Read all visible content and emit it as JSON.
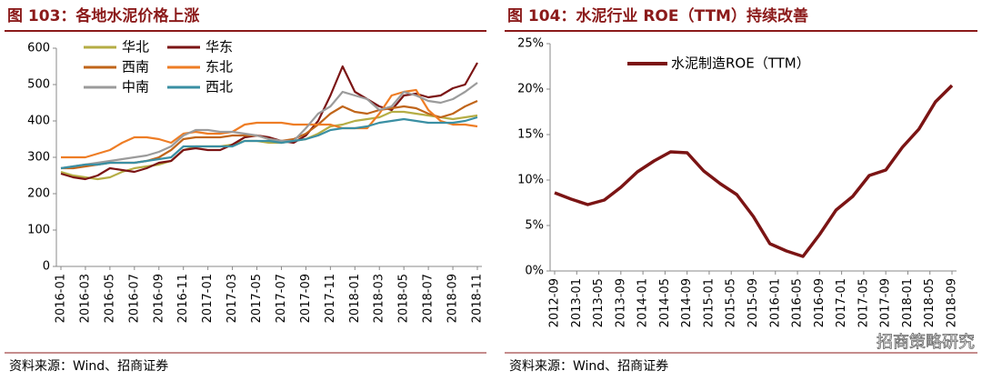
{
  "chart_data": [
    {
      "type": "line",
      "title": "图 103：各地水泥价格上涨",
      "source": "资料来源：Wind、招商证券",
      "categories": [
        "2016-01",
        null,
        "2016-03",
        null,
        "2016-05",
        null,
        "2016-07",
        null,
        "2016-09",
        null,
        "2016-11",
        null,
        "2017-01",
        null,
        "2017-03",
        null,
        "2017-05",
        null,
        "2017-07",
        null,
        "2017-09",
        null,
        "2017-11",
        null,
        "2018-01",
        null,
        "2018-03",
        null,
        "2018-05",
        null,
        "2018-07",
        null,
        "2018-09",
        null,
        "2018-11"
      ],
      "ylim": [
        0,
        600
      ],
      "yticks": [
        0,
        100,
        200,
        300,
        400,
        500,
        600
      ],
      "legend": "upper left",
      "series": [
        {
          "name": "华北",
          "color": "#b5ad45",
          "values": [
            260,
            250,
            245,
            240,
            245,
            260,
            270,
            275,
            280,
            290,
            320,
            330,
            330,
            330,
            335,
            345,
            345,
            340,
            340,
            345,
            350,
            365,
            385,
            390,
            400,
            405,
            410,
            425,
            425,
            420,
            415,
            410,
            405,
            410,
            415
          ]
        },
        {
          "name": "华东",
          "color": "#7b1414",
          "values": [
            255,
            245,
            240,
            250,
            270,
            265,
            260,
            270,
            285,
            290,
            320,
            325,
            320,
            320,
            335,
            355,
            360,
            355,
            345,
            340,
            360,
            400,
            470,
            550,
            480,
            460,
            440,
            430,
            470,
            475,
            465,
            470,
            490,
            500,
            560
          ]
        },
        {
          "name": "西南",
          "color": "#c0651a",
          "values": [
            270,
            270,
            275,
            280,
            285,
            285,
            285,
            290,
            300,
            320,
            350,
            355,
            355,
            355,
            360,
            360,
            360,
            350,
            345,
            350,
            365,
            390,
            420,
            440,
            425,
            420,
            430,
            435,
            440,
            435,
            420,
            410,
            420,
            440,
            455
          ]
        },
        {
          "name": "东北",
          "color": "#ee7d25",
          "values": [
            300,
            300,
            300,
            310,
            320,
            340,
            355,
            355,
            350,
            340,
            365,
            370,
            365,
            365,
            370,
            390,
            395,
            395,
            395,
            390,
            390,
            390,
            390,
            380,
            380,
            380,
            420,
            470,
            480,
            485,
            430,
            400,
            390,
            390,
            385
          ]
        },
        {
          "name": "中南",
          "color": "#9b9b9b",
          "values": [
            270,
            275,
            280,
            285,
            290,
            295,
            300,
            305,
            315,
            330,
            360,
            375,
            375,
            370,
            370,
            365,
            360,
            350,
            345,
            345,
            380,
            420,
            440,
            480,
            470,
            460,
            430,
            440,
            480,
            470,
            455,
            450,
            460,
            480,
            505
          ]
        },
        {
          "name": "西北",
          "color": "#3a8fa3",
          "values": [
            270,
            275,
            280,
            280,
            285,
            285,
            285,
            290,
            295,
            300,
            330,
            330,
            330,
            330,
            330,
            345,
            345,
            345,
            340,
            345,
            350,
            360,
            375,
            380,
            380,
            385,
            395,
            400,
            405,
            400,
            395,
            395,
            395,
            400,
            410
          ]
        }
      ]
    },
    {
      "type": "line",
      "title": "图 104：水泥行业 ROE（TTM）持续改善",
      "source": "资料来源：Wind、招商证券",
      "watermark": "招商策略研究",
      "xticks": [
        "2012-09",
        "2013-01",
        "2013-05",
        "2013-09",
        "2014-01",
        "2014-05",
        "2014-09",
        "2015-01",
        "2015-05",
        "2015-09",
        "2016-01",
        "2016-05",
        "2016-09",
        "2017-01",
        "2017-05",
        "2017-09",
        "2018-01",
        "2018-05",
        "2018-09"
      ],
      "ylim": [
        0,
        25
      ],
      "yticks": [
        {
          "value": 0,
          "label": "0%"
        },
        {
          "value": 5,
          "label": "5%"
        },
        {
          "value": 10,
          "label": "10%"
        },
        {
          "value": 15,
          "label": "15%"
        },
        {
          "value": 20,
          "label": "20%"
        },
        {
          "value": 25,
          "label": "25%"
        }
      ],
      "legend": "upper left",
      "series": [
        {
          "name": "水泥制造ROE（TTM）",
          "color": "#7b1414",
          "values": [
            8.6,
            7.9,
            7.3,
            7.8,
            9.2,
            10.9,
            12.1,
            13.1,
            13.0,
            11.0,
            9.6,
            8.4,
            6.0,
            3.0,
            2.2,
            1.6,
            4.0,
            6.7,
            8.2,
            10.5,
            11.1,
            13.6,
            15.6,
            18.6,
            20.4
          ]
        }
      ]
    }
  ]
}
